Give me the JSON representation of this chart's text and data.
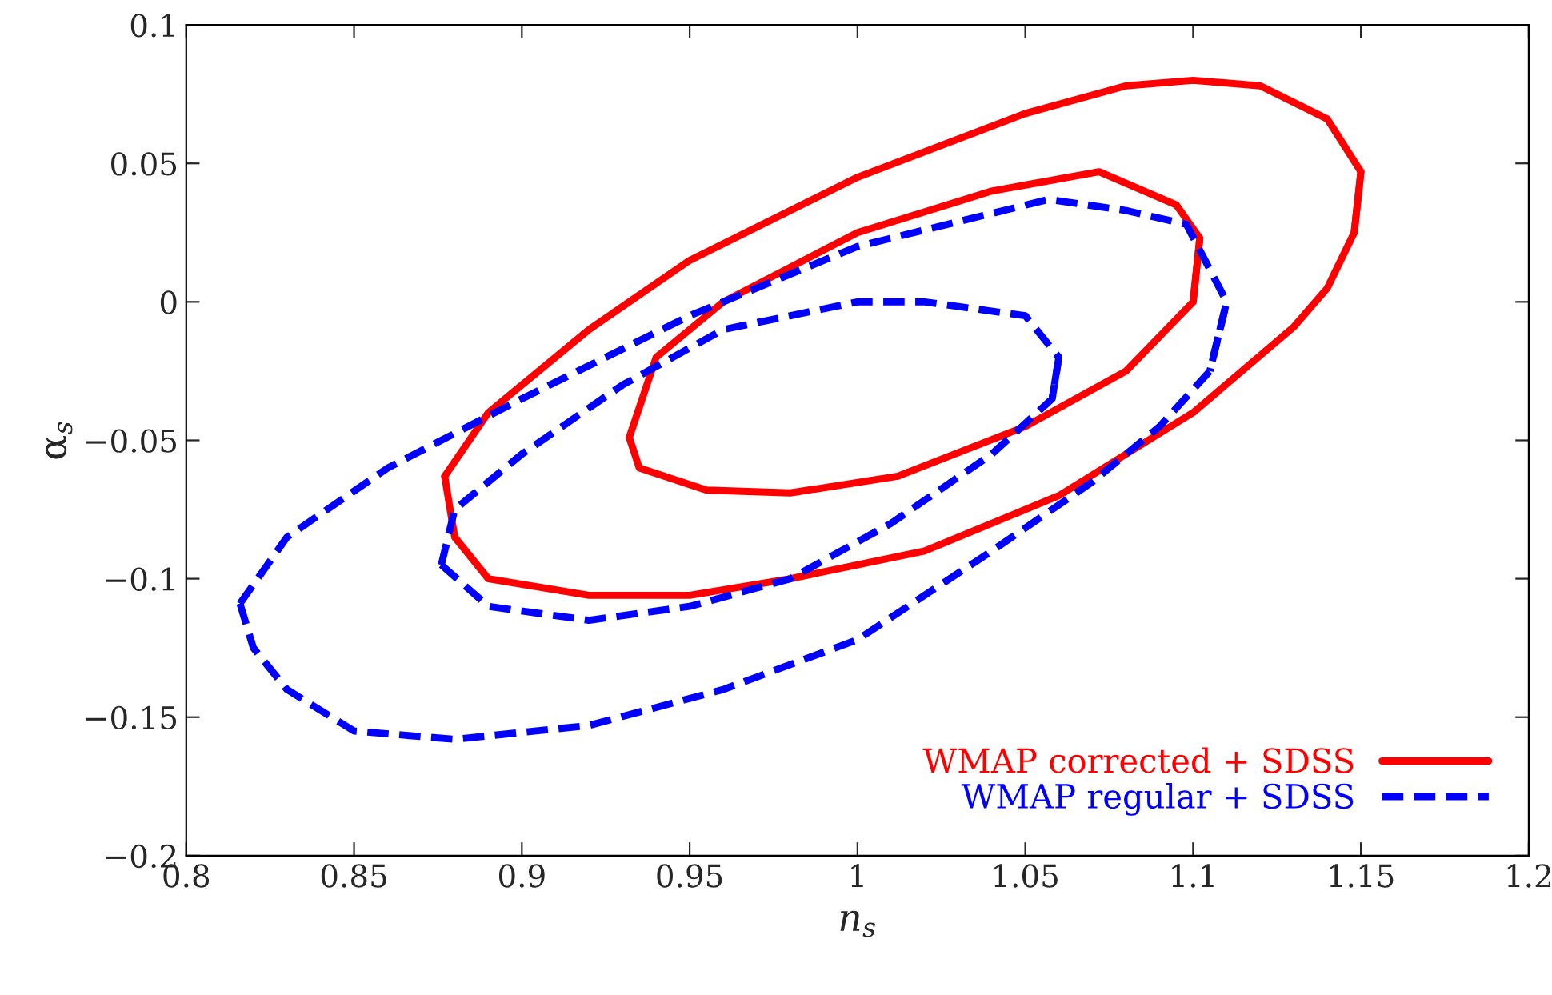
{
  "chart_data": {
    "type": "line",
    "xlabel": "n$_{s}$",
    "ylabel": "α$_{s}$",
    "xlim": [
      0.8,
      1.2
    ],
    "xticks": [
      0.8,
      0.85,
      0.9,
      0.95,
      1,
      1.05,
      1.1,
      1.15,
      1.2
    ],
    "ylim": [
      -0.2,
      0.1
    ],
    "yticks": [
      {
        "value": -0.2,
        "label": "−0.2"
      },
      {
        "value": -0.15,
        "label": "−0.15"
      },
      {
        "value": -0.1,
        "label": "−0.1"
      },
      {
        "value": -0.05,
        "label": "−0.05"
      },
      0,
      0.05,
      0.1
    ],
    "grid": false,
    "legend": "bottom right",
    "marker": "none",
    "series": [
      {
        "name": "WMAP corrected + SDSS",
        "color": "#ff0000",
        "line_style": "solid",
        "x": [
          0.877,
          0.89,
          0.92,
          0.95,
          1.0,
          1.05,
          1.08,
          1.1,
          1.12,
          1.14,
          1.15,
          1.148
        ],
        "values": [
          -0.063,
          -0.04,
          -0.01,
          0.015,
          0.045,
          0.068,
          0.078,
          0.08,
          0.078,
          0.066,
          0.047,
          0.025
        ]
      },
      {
        "color": "#ff0000",
        "line_style": "solid",
        "x": [
          0.877,
          0.88,
          0.89,
          0.92,
          0.95,
          0.98,
          1.02,
          1.06,
          1.1,
          1.13,
          1.14,
          1.148,
          1.15
        ],
        "values": [
          -0.063,
          -0.085,
          -0.1,
          -0.106,
          -0.106,
          -0.1,
          -0.09,
          -0.07,
          -0.04,
          -0.009,
          0.005,
          0.025,
          0.047
        ]
      },
      {
        "color": "#ff0000",
        "line_style": "solid",
        "x": [
          0.932,
          0.94,
          0.96,
          1.0,
          1.04,
          1.072,
          1.095,
          1.102,
          1.1
        ],
        "values": [
          -0.049,
          -0.02,
          0.0,
          0.025,
          0.04,
          0.047,
          0.035,
          0.023,
          0.0
        ]
      },
      {
        "color": "#ff0000",
        "line_style": "solid",
        "x": [
          0.932,
          0.935,
          0.955,
          0.98,
          1.012,
          1.05,
          1.08,
          1.1,
          1.102
        ],
        "values": [
          -0.049,
          -0.06,
          -0.068,
          -0.069,
          -0.063,
          -0.045,
          -0.025,
          0.0,
          0.023
        ]
      },
      {
        "name": "WMAP regular + SDSS",
        "color": "#0000ff",
        "line_style": "dashed",
        "x": [
          0.816,
          0.83,
          0.86,
          0.9,
          0.95,
          1.0,
          1.057,
          1.08,
          1.098,
          1.11,
          1.105
        ],
        "values": [
          -0.109,
          -0.085,
          -0.06,
          -0.035,
          -0.005,
          0.02,
          0.037,
          0.033,
          0.028,
          0.0,
          -0.025
        ]
      },
      {
        "color": "#0000ff",
        "line_style": "dashed",
        "x": [
          0.816,
          0.82,
          0.83,
          0.85,
          0.88,
          0.92,
          0.96,
          1.0,
          1.04,
          1.07,
          1.09,
          1.105,
          1.11
        ],
        "values": [
          -0.109,
          -0.125,
          -0.14,
          -0.155,
          -0.158,
          -0.153,
          -0.14,
          -0.122,
          -0.09,
          -0.065,
          -0.045,
          -0.025,
          0.0
        ]
      },
      {
        "color": "#0000ff",
        "line_style": "dashed",
        "x": [
          0.876,
          0.88,
          0.9,
          0.93,
          0.96,
          1.0,
          1.02,
          1.05,
          1.06,
          1.058
        ],
        "values": [
          -0.095,
          -0.075,
          -0.055,
          -0.03,
          -0.01,
          0.0,
          0.0,
          -0.005,
          -0.02,
          -0.035
        ]
      },
      {
        "color": "#0000ff",
        "line_style": "dashed",
        "x": [
          0.876,
          0.89,
          0.92,
          0.95,
          0.98,
          1.01,
          1.04,
          1.058,
          1.06
        ],
        "values": [
          -0.095,
          -0.11,
          -0.115,
          -0.11,
          -0.1,
          -0.08,
          -0.055,
          -0.035,
          -0.02
        ]
      }
    ]
  }
}
